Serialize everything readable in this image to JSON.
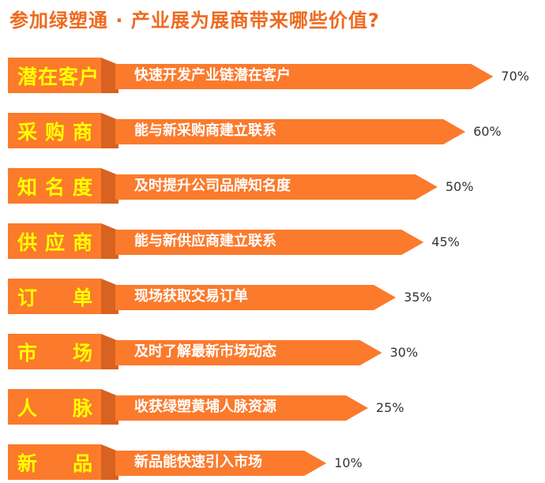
{
  "title": "参加绿塑通 · 产业展为展商带来哪些价值?",
  "chart_data": {
    "type": "bar",
    "orientation": "horizontal",
    "title": "参加绿塑通 · 产业展为展商带来哪些价值?",
    "categories": [
      "潜在客户",
      "采购商",
      "知名度",
      "供应商",
      "订单",
      "市场",
      "人脉",
      "新品"
    ],
    "descriptions": [
      "快速开发产业链潜在客户",
      "能与新采购商建立联系",
      "及时提升公司品牌知名度",
      "能与新供应商建立联系",
      "现场获取交易订单",
      "及时了解最新市场动态",
      "收获绿塑黄埔人脉资源",
      "新品能快速引入市场"
    ],
    "values": [
      70,
      60,
      50,
      45,
      35,
      30,
      25,
      10
    ],
    "value_labels": [
      "70%",
      "60%",
      "50%",
      "45%",
      "35%",
      "30%",
      "25%",
      "10%"
    ],
    "unit": "%",
    "colors": {
      "bar": "#fb7a2c",
      "fold": "#d8621f",
      "label_text": "#ffff00",
      "title": "#ee6a1e"
    }
  }
}
